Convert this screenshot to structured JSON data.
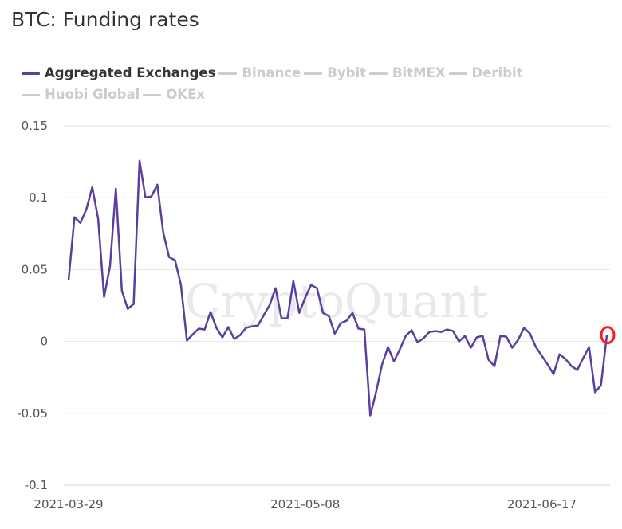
{
  "title": "BTC: Funding rates",
  "legend": [
    {
      "label": "Aggregated Exchanges",
      "active": true
    },
    {
      "label": "Binance",
      "active": false
    },
    {
      "label": "Bybit",
      "active": false
    },
    {
      "label": "BitMEX",
      "active": false
    },
    {
      "label": "Deribit",
      "active": false
    },
    {
      "label": "Huobi Global",
      "active": false
    },
    {
      "label": "OKEx",
      "active": false
    }
  ],
  "watermark": "CryptoQuant",
  "colors": {
    "series": "#5b3f9e",
    "highlight": "#ff1a1a",
    "grid": "#e6e6e6"
  },
  "chart_data": {
    "type": "line",
    "title": "BTC: Funding rates",
    "xlabel": "",
    "ylabel": "",
    "x_start": "2021-03-29",
    "x_step_days": 1,
    "x_ticks": [
      {
        "label": "2021-03-29",
        "index": 0
      },
      {
        "label": "2021-05-08",
        "index": 40
      },
      {
        "label": "2021-06-17",
        "index": 80
      }
    ],
    "y_ticks": [
      0.15,
      0.1,
      0.05,
      0,
      -0.05,
      -0.1
    ],
    "y_tick_labels": [
      "0.15",
      "0.1",
      "0.05",
      "0",
      "-0.05",
      "-0.1"
    ],
    "ylim": [
      -0.1,
      0.15
    ],
    "grid": true,
    "legend_position": "top-left",
    "series": [
      {
        "name": "Aggregated Exchanges",
        "values": [
          0.0427,
          0.0864,
          0.0825,
          0.0919,
          0.1074,
          0.0853,
          0.031,
          0.052,
          0.1063,
          0.0354,
          0.0227,
          0.026,
          0.1257,
          0.1002,
          0.1008,
          0.1091,
          0.0759,
          0.0587,
          0.0565,
          0.0393,
          0.0006,
          0.005,
          0.0089,
          0.0083,
          0.0205,
          0.0094,
          0.0028,
          0.01,
          0.0017,
          0.0044,
          0.0094,
          0.0105,
          0.0111,
          0.0183,
          0.0255,
          0.0371,
          0.0161,
          0.0161,
          0.0421,
          0.0199,
          0.0305,
          0.0393,
          0.0371,
          0.0199,
          0.0177,
          0.0055,
          0.0127,
          0.0144,
          0.0199,
          0.0089,
          0.0083,
          -0.0515,
          -0.0349,
          -0.0161,
          -0.0039,
          -0.0138,
          -0.0055,
          0.0039,
          0.0078,
          -0.0006,
          0.0022,
          0.0066,
          0.0072,
          0.0066,
          0.0083,
          0.0072,
          0.0,
          0.0039,
          -0.0044,
          0.0028,
          0.0039,
          -0.0127,
          -0.0172,
          0.0039,
          0.0033,
          -0.0044,
          0.0011,
          0.0094,
          0.0055,
          -0.0039,
          -0.01,
          -0.0161,
          -0.0227,
          -0.0089,
          -0.0122,
          -0.0172,
          -0.0199,
          -0.0116,
          -0.0039,
          -0.0354,
          -0.0305,
          0.0044
        ]
      }
    ],
    "annotations": [
      {
        "type": "circle",
        "index": "last"
      }
    ]
  }
}
